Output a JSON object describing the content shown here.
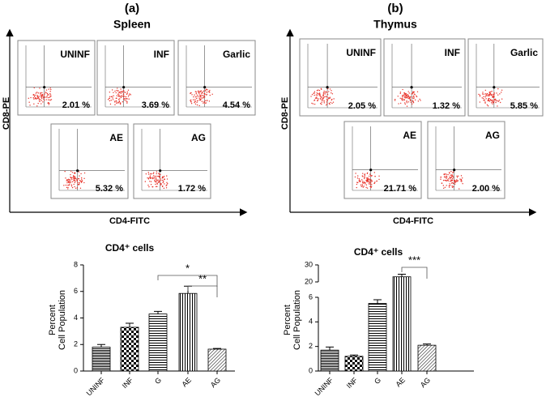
{
  "flow_panels": [
    {
      "panel": "(a)",
      "title": "Spleen",
      "y_label": "CD8-PE",
      "x_label": "CD4-FITC",
      "plots": [
        {
          "group": "UNINF",
          "percent": "2.01 %"
        },
        {
          "group": "INF",
          "percent": "3.69 %"
        },
        {
          "group": "Garlic",
          "percent": "4.54 %"
        },
        {
          "group": "AE",
          "percent": "5.32 %"
        },
        {
          "group": "AG",
          "percent": "1.72 %"
        }
      ]
    },
    {
      "panel": "(b)",
      "title": "Thymus",
      "y_label": "CD8-PE",
      "x_label": "CD4-FITC",
      "plots": [
        {
          "group": "UNINF",
          "percent": "2.05 %"
        },
        {
          "group": "INF",
          "percent": "1.32 %"
        },
        {
          "group": "Garlic",
          "percent": "5.85 %"
        },
        {
          "group": "AE",
          "percent": "21.71 %"
        },
        {
          "group": "AG",
          "percent": "2.00 %"
        }
      ]
    }
  ],
  "chart_data": [
    {
      "type": "bar",
      "title": "CD4⁺ cells",
      "y_label": [
        "Percent",
        "Cell Population"
      ],
      "categories": [
        "UNINF",
        "INF",
        "G",
        "AE",
        "AG"
      ],
      "values": [
        1.8,
        3.3,
        4.3,
        5.85,
        1.65
      ],
      "errors": [
        0.2,
        0.3,
        0.2,
        0.55,
        0.05
      ],
      "ylim": [
        0,
        8
      ],
      "yticks": [
        0,
        2,
        4,
        6,
        8
      ],
      "significance": [
        {
          "label": "*",
          "between": [
            "G",
            "AG"
          ]
        },
        {
          "label": "**",
          "between": [
            "AE",
            "AG"
          ]
        }
      ]
    },
    {
      "type": "bar",
      "title": "CD4⁺ cells",
      "y_label": [
        "Percent",
        "Cell Population"
      ],
      "categories": [
        "UNINF",
        "INF",
        "G",
        "AE",
        "AG"
      ],
      "values": [
        1.7,
        1.2,
        5.5,
        23,
        2.1
      ],
      "errors": [
        0.25,
        0.1,
        0.3,
        1.5,
        0.1
      ],
      "ylim": [
        0,
        30
      ],
      "axis_break": [
        6,
        20
      ],
      "yticks": [
        0,
        2,
        4,
        6,
        20,
        30
      ],
      "significance": [
        {
          "label": "***",
          "between": [
            "AE",
            "AG"
          ]
        }
      ]
    }
  ]
}
